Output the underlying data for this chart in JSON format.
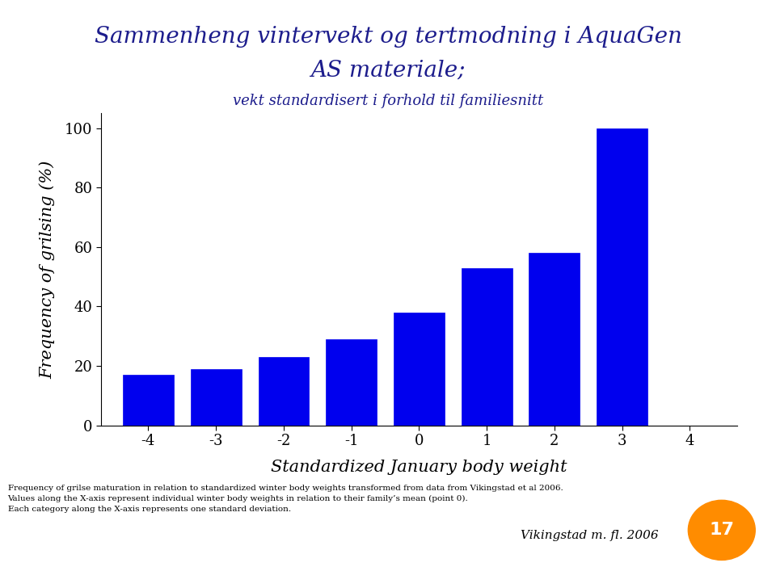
{
  "title_line1": "Sammenheng vintervekt og tertmodning i AquaGen",
  "title_line2": "AS materiale;",
  "title_line3": "vekt standardisert i forhold til familiesnitt",
  "xlabel": "Standardized January body weight",
  "ylabel": "Frequency of grilsing (%)",
  "bar_positions": [
    -4,
    -3,
    -2,
    -1,
    0,
    1,
    2,
    3
  ],
  "bar_heights": [
    17,
    19,
    23,
    29,
    38,
    53,
    58,
    100
  ],
  "bar_color": "#0000EE",
  "bar_edge_color": "#0000EE",
  "bar_width": 0.75,
  "xlim": [
    -4.7,
    4.7
  ],
  "ylim": [
    0,
    105
  ],
  "xticks": [
    -4,
    -3,
    -2,
    -1,
    0,
    1,
    2,
    3,
    4
  ],
  "yticks": [
    0,
    20,
    40,
    60,
    80,
    100
  ],
  "title_color": "#1C1C8C",
  "title1_fontsize": 20,
  "title2_fontsize": 20,
  "title3_fontsize": 13,
  "axis_label_fontsize": 15,
  "tick_fontsize": 13,
  "footnote_line1": "Frequency of grilse maturation in relation to standardized winter body weights transformed from data from Vikingstad et al 2006.",
  "footnote_line2": "Values along the X-axis represent individual winter body weights in relation to their family’s mean (point 0).",
  "footnote_line3": "Each category along the X-axis represents one standard deviation.",
  "footnote_right": "Vikingstad m. fl. 2006",
  "slide_number": "17",
  "badge_color": "#FF8C00",
  "background_color": "#FFFFFF"
}
